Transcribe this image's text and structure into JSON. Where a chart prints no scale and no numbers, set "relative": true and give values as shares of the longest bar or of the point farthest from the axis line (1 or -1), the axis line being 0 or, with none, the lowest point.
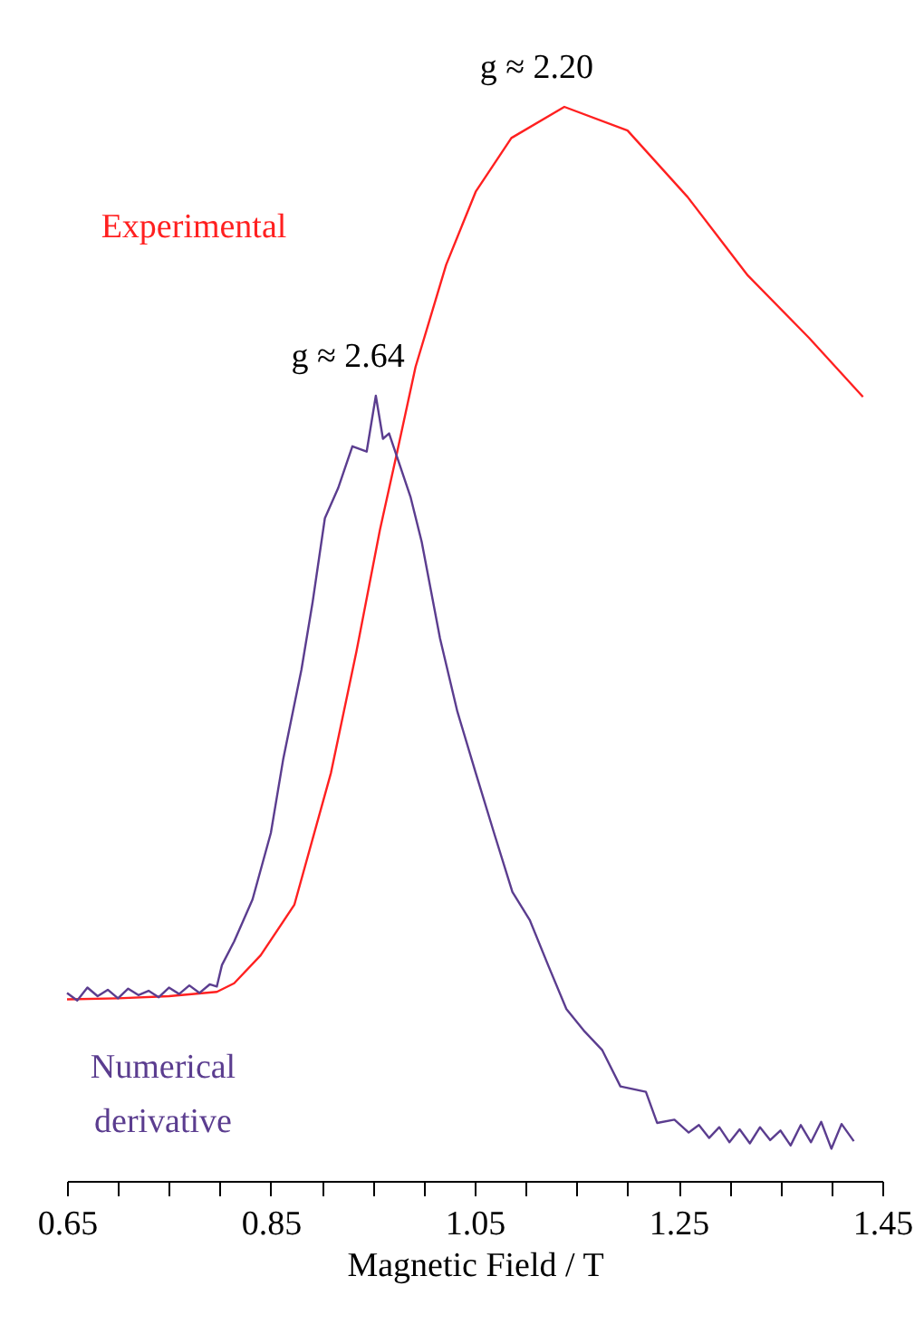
{
  "chart_data": {
    "type": "line",
    "relative": true,
    "xlabel": "Magnetic Field / T",
    "xlim": [
      0.65,
      1.45
    ],
    "xticks": [
      0.65,
      {
        "value": 0.7,
        "label": null
      },
      {
        "value": 0.75,
        "label": null
      },
      {
        "value": 0.8,
        "label": null
      },
      0.85,
      {
        "value": 0.9,
        "label": null
      },
      {
        "value": 0.95,
        "label": null
      },
      {
        "value": 1.0,
        "label": null
      },
      1.05,
      {
        "value": 1.1,
        "label": null
      },
      {
        "value": 1.15,
        "label": null
      },
      {
        "value": 1.2,
        "label": null
      },
      1.25,
      {
        "value": 1.3,
        "label": null
      },
      {
        "value": 1.35,
        "label": null
      },
      {
        "value": 1.4,
        "label": null
      },
      1.45
    ],
    "annotations": [
      {
        "text": "g ≈ 2.20",
        "x": 1.138,
        "y": 1.0
      },
      {
        "text": "g ≈ 2.64",
        "x": 0.953,
        "y": 0.731
      }
    ],
    "series": [
      {
        "name": "Experimental",
        "color": "#ff2020",
        "x": [
          0.65,
          0.7,
          0.75,
          0.797,
          0.814,
          0.84,
          0.873,
          0.909,
          0.934,
          0.957,
          0.974,
          0.992,
          1.022,
          1.051,
          1.086,
          1.138,
          1.2,
          1.259,
          1.318,
          1.378,
          1.431
        ],
        "values": [
          0.169,
          0.17,
          0.172,
          0.176,
          0.184,
          0.21,
          0.257,
          0.38,
          0.493,
          0.606,
          0.679,
          0.758,
          0.853,
          0.921,
          0.971,
          1.0,
          0.978,
          0.916,
          0.843,
          0.785,
          0.73
        ]
      },
      {
        "name": "Numerical derivative",
        "color": "#5b3d8f",
        "x": [
          0.65,
          0.66,
          0.67,
          0.68,
          0.69,
          0.7,
          0.71,
          0.72,
          0.73,
          0.74,
          0.75,
          0.76,
          0.77,
          0.78,
          0.79,
          0.797,
          0.802,
          0.814,
          0.832,
          0.85,
          0.862,
          0.88,
          0.891,
          0.903,
          0.916,
          0.93,
          0.944,
          0.953,
          0.96,
          0.966,
          0.987,
          0.998,
          1.016,
          1.033,
          1.051,
          1.069,
          1.087,
          1.104,
          1.122,
          1.14,
          1.158,
          1.175,
          1.193,
          1.218,
          1.229,
          1.246,
          1.26,
          1.27,
          1.28,
          1.29,
          1.3,
          1.31,
          1.32,
          1.33,
          1.34,
          1.35,
          1.36,
          1.37,
          1.38,
          1.39,
          1.4,
          1.41,
          1.422
        ],
        "values": [
          0.175,
          0.168,
          0.18,
          0.172,
          0.178,
          0.17,
          0.179,
          0.173,
          0.177,
          0.171,
          0.18,
          0.174,
          0.182,
          0.175,
          0.183,
          0.181,
          0.201,
          0.223,
          0.262,
          0.324,
          0.392,
          0.476,
          0.539,
          0.617,
          0.645,
          0.684,
          0.679,
          0.731,
          0.691,
          0.696,
          0.637,
          0.595,
          0.505,
          0.437,
          0.38,
          0.324,
          0.269,
          0.243,
          0.201,
          0.16,
          0.139,
          0.122,
          0.088,
          0.083,
          0.054,
          0.057,
          0.045,
          0.052,
          0.04,
          0.05,
          0.036,
          0.048,
          0.035,
          0.05,
          0.038,
          0.047,
          0.033,
          0.052,
          0.036,
          0.055,
          0.03,
          0.053,
          0.037
        ]
      }
    ]
  }
}
